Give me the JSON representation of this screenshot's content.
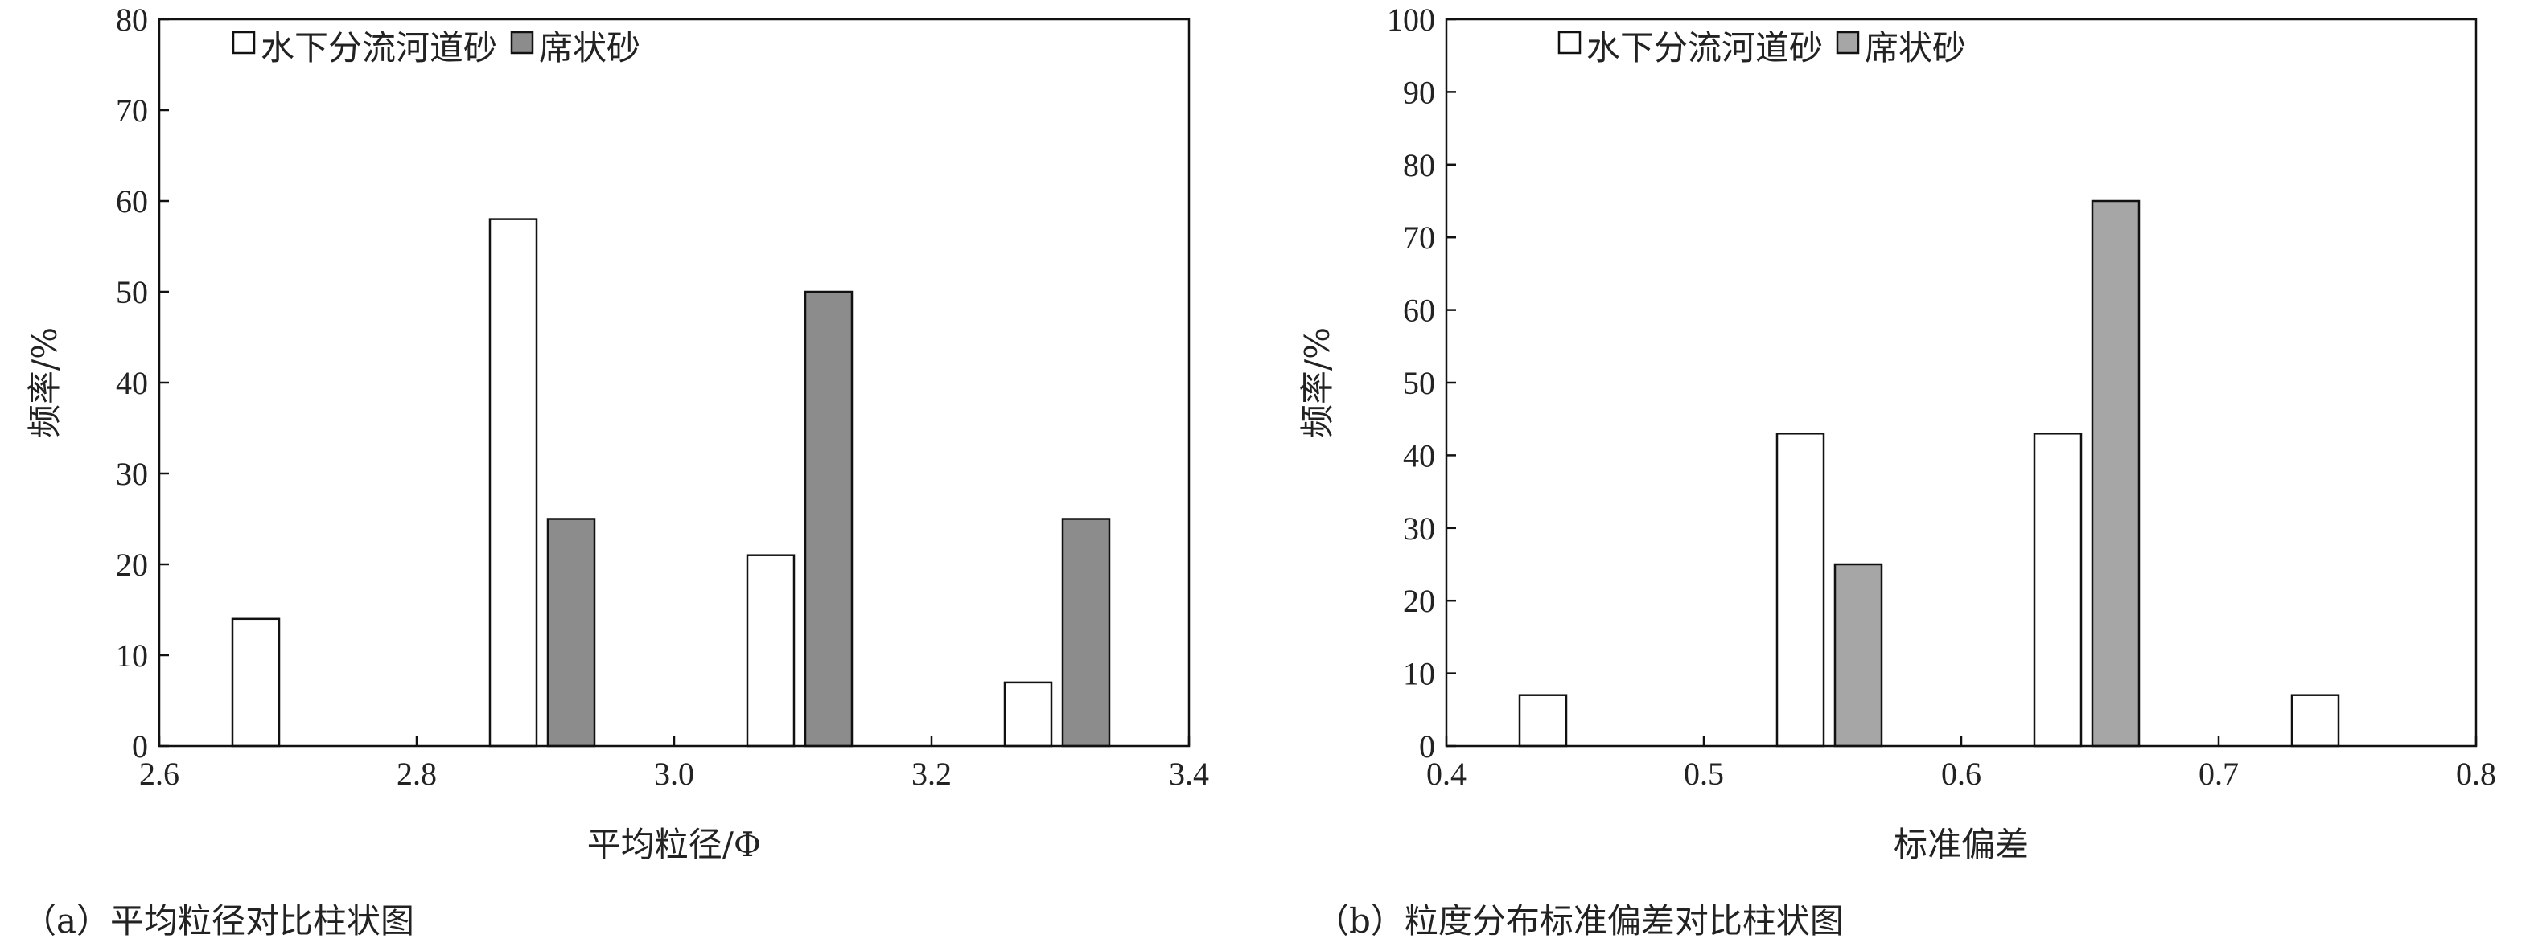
{
  "chart_data": [
    {
      "type": "bar",
      "x_axis_type": "numeric",
      "xlabel": "平均粒径/Φ",
      "ylabel": "频率/%",
      "xlim": [
        2.6,
        3.4
      ],
      "ylim": [
        0,
        80
      ],
      "xticks": [
        "2.6",
        "2.8",
        "3.0",
        "3.2",
        "3.4"
      ],
      "yticks": [
        "0",
        "10",
        "20",
        "30",
        "40",
        "50",
        "60",
        "70",
        "80"
      ],
      "grid": false,
      "legend_position": "top-left",
      "caption": "（a）平均粒径对比柱状图",
      "series": [
        {
          "name": "水下分流河道砂",
          "color": "#ffffff",
          "points": [
            {
              "x": 2.675,
              "y": 14
            },
            {
              "x": 2.875,
              "y": 58
            },
            {
              "x": 3.075,
              "y": 21
            },
            {
              "x": 3.275,
              "y": 7
            }
          ]
        },
        {
          "name": "席状砂",
          "color": "#8c8c8c",
          "points": [
            {
              "x": 2.92,
              "y": 25
            },
            {
              "x": 3.12,
              "y": 50
            },
            {
              "x": 3.32,
              "y": 25
            }
          ]
        }
      ]
    },
    {
      "type": "bar",
      "x_axis_type": "numeric",
      "xlabel": "标准偏差",
      "ylabel": "频率/%",
      "xlim": [
        0.4,
        0.8
      ],
      "ylim": [
        0,
        100
      ],
      "xticks": [
        "0.4",
        "0.5",
        "0.6",
        "0.7",
        "0.8"
      ],
      "yticks": [
        "0",
        "10",
        "20",
        "30",
        "40",
        "50",
        "60",
        "70",
        "80",
        "90",
        "100"
      ],
      "grid": false,
      "legend_position": "top-left",
      "caption": "（b）粒度分布标准偏差对比柱状图",
      "series": [
        {
          "name": "水下分流河道砂",
          "color": "#ffffff",
          "points": [
            {
              "x": 0.4375,
              "y": 7
            },
            {
              "x": 0.5375,
              "y": 43
            },
            {
              "x": 0.6375,
              "y": 43
            },
            {
              "x": 0.7375,
              "y": 7
            }
          ]
        },
        {
          "name": "席状砂",
          "color": "#a6a6a6",
          "points": [
            {
              "x": 0.56,
              "y": 25
            },
            {
              "x": 0.66,
              "y": 75
            }
          ]
        }
      ]
    }
  ]
}
